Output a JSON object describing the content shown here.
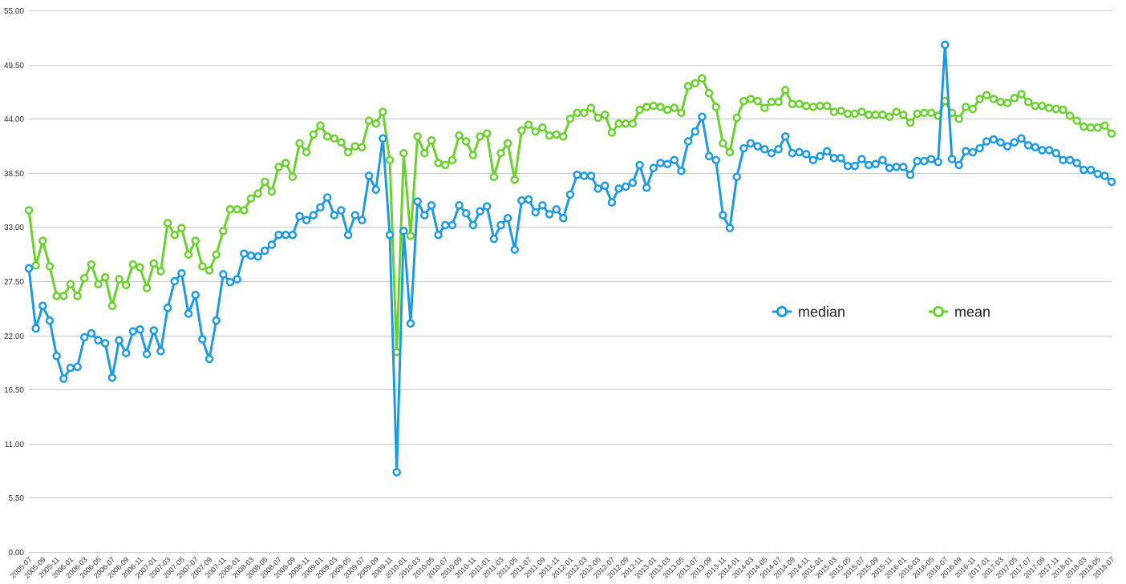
{
  "chart_data": {
    "type": "line",
    "title": "",
    "xlabel": "",
    "ylabel": "",
    "ylim": [
      0,
      55
    ],
    "y_ticks": [
      "0.00",
      "5.50",
      "11.00",
      "16.50",
      "22.00",
      "27.50",
      "33.00",
      "38.50",
      "44.00",
      "49.50",
      "55.00"
    ],
    "grid": "horizontal",
    "legend_position": "right-center",
    "x": [
      "2005-07",
      "2005-08",
      "2005-09",
      "2005-10",
      "2005-11",
      "2005-12",
      "2006-01",
      "2006-02",
      "2006-03",
      "2006-04",
      "2006-05",
      "2006-06",
      "2006-07",
      "2006-08",
      "2006-09",
      "2006-10",
      "2006-11",
      "2006-12",
      "2007-01",
      "2007-02",
      "2007-03",
      "2007-04",
      "2007-05",
      "2007-06",
      "2007-07",
      "2007-08",
      "2007-09",
      "2007-10",
      "2007-11",
      "2007-12",
      "2008-01",
      "2008-02",
      "2008-03",
      "2008-04",
      "2008-05",
      "2008-06",
      "2008-07",
      "2008-08",
      "2008-09",
      "2008-10",
      "2008-11",
      "2008-12",
      "2009-01",
      "2009-02",
      "2009-03",
      "2009-04",
      "2009-05",
      "2009-06",
      "2009-07",
      "2009-08",
      "2009-09",
      "2009-10",
      "2009-11",
      "2009-12",
      "2010-01",
      "2010-02",
      "2010-03",
      "2010-04",
      "2010-05",
      "2010-06",
      "2010-07",
      "2010-08",
      "2010-09",
      "2010-10",
      "2010-11",
      "2010-12",
      "2011-01",
      "2011-02",
      "2011-03",
      "2011-04",
      "2011-05",
      "2011-06",
      "2011-07",
      "2011-08",
      "2011-09",
      "2011-10",
      "2011-11",
      "2011-12",
      "2012-01",
      "2012-02",
      "2012-03",
      "2012-04",
      "2012-05",
      "2012-06",
      "2012-07",
      "2012-08",
      "2012-09",
      "2012-10",
      "2012-11",
      "2012-12",
      "2013-01",
      "2013-02",
      "2013-03",
      "2013-04",
      "2013-05",
      "2013-06",
      "2013-07",
      "2013-08",
      "2013-09",
      "2013-10",
      "2013-11",
      "2013-12",
      "2014-01",
      "2014-02",
      "2014-03",
      "2014-04",
      "2014-05",
      "2014-06",
      "2014-07",
      "2014-08",
      "2014-09",
      "2014-10",
      "2014-11",
      "2014-12",
      "2015-01",
      "2015-02",
      "2015-03",
      "2015-04",
      "2015-05",
      "2015-06",
      "2015-07",
      "2015-08",
      "2015-09",
      "2015-10",
      "2015-11",
      "2015-12",
      "2016-01",
      "2016-02",
      "2016-03",
      "2016-04",
      "2016-05",
      "2016-06",
      "2016-07",
      "2016-08",
      "2016-09",
      "2016-10",
      "2016-11",
      "2016-12",
      "2017-01",
      "2017-02",
      "2017-03",
      "2017-04",
      "2017-05",
      "2017-06",
      "2017-07",
      "2017-08",
      "2017-09",
      "2017-10",
      "2017-11",
      "2017-12",
      "2018-01",
      "2018-02",
      "2018-03",
      "2018-04",
      "2018-05",
      "2018-06",
      "2018-07"
    ],
    "series": [
      {
        "name": "median",
        "color": "#1e9be0",
        "values": [
          28.8,
          22.7,
          25.0,
          23.5,
          19.9,
          17.6,
          18.7,
          18.8,
          21.8,
          22.2,
          21.5,
          21.2,
          17.7,
          21.5,
          20.2,
          22.4,
          22.6,
          20.1,
          22.5,
          20.4,
          24.8,
          27.5,
          28.3,
          24.2,
          26.1,
          21.6,
          19.6,
          23.5,
          28.2,
          27.4,
          27.7,
          30.3,
          30.1,
          30.0,
          30.6,
          31.2,
          32.2,
          32.2,
          32.2,
          34.1,
          33.7,
          34.2,
          35.0,
          36.0,
          34.2,
          34.7,
          32.2,
          34.2,
          33.7,
          38.2,
          36.8,
          42.0,
          32.2,
          8.1,
          32.6,
          23.2,
          35.6,
          34.2,
          35.2,
          32.2,
          33.2,
          33.2,
          35.2,
          34.4,
          33.2,
          34.6,
          35.1,
          31.8,
          33.2,
          33.9,
          30.7,
          35.7,
          35.8,
          34.5,
          35.2,
          34.3,
          34.8,
          33.9,
          36.3,
          38.3,
          38.2,
          38.2,
          36.9,
          37.2,
          35.5,
          36.9,
          37.1,
          37.5,
          39.3,
          37.0,
          39.0,
          39.5,
          39.4,
          39.8,
          38.7,
          41.7,
          42.7,
          44.2,
          40.2,
          39.8,
          34.2,
          32.9,
          38.1,
          41.0,
          41.5,
          41.2,
          40.9,
          40.5,
          40.9,
          42.2,
          40.5,
          40.6,
          40.4,
          39.8,
          40.2,
          40.7,
          40.0,
          40.0,
          39.2,
          39.2,
          39.9,
          39.3,
          39.4,
          39.8,
          39.0,
          39.1,
          39.1,
          38.3,
          39.7,
          39.7,
          39.9,
          39.6,
          51.5,
          39.9,
          39.3,
          40.7,
          40.6,
          41.0,
          41.7,
          41.9,
          41.6,
          41.2,
          41.6,
          42.0,
          41.3,
          41.1,
          40.8,
          40.8,
          40.5,
          39.8,
          39.8,
          39.5,
          38.8,
          38.8,
          38.4,
          38.2,
          37.6
        ]
      },
      {
        "name": "mean",
        "color": "#6ad12e",
        "values": [
          34.7,
          29.1,
          31.6,
          29.0,
          26.0,
          26.0,
          27.2,
          26.0,
          27.8,
          29.2,
          27.2,
          27.9,
          25.0,
          27.7,
          27.1,
          29.2,
          28.9,
          26.8,
          29.3,
          28.5,
          33.4,
          32.2,
          32.9,
          30.2,
          31.6,
          29.0,
          28.6,
          30.2,
          32.6,
          34.8,
          34.8,
          34.7,
          35.9,
          36.4,
          37.6,
          36.6,
          39.1,
          39.5,
          38.1,
          41.5,
          40.6,
          42.4,
          43.3,
          42.2,
          42.0,
          41.6,
          40.6,
          41.2,
          41.1,
          43.8,
          43.5,
          44.7,
          39.8,
          20.3,
          40.5,
          32.1,
          42.2,
          40.5,
          41.8,
          39.5,
          39.3,
          39.8,
          42.3,
          41.7,
          40.3,
          42.2,
          42.5,
          38.1,
          40.5,
          41.5,
          37.8,
          42.8,
          43.4,
          42.7,
          43.1,
          42.3,
          42.4,
          42.2,
          44.0,
          44.6,
          44.6,
          45.1,
          44.1,
          44.4,
          42.6,
          43.5,
          43.5,
          43.5,
          44.9,
          45.2,
          45.3,
          45.2,
          44.9,
          45.1,
          44.6,
          47.3,
          47.6,
          48.1,
          46.6,
          45.2,
          41.5,
          40.6,
          44.1,
          45.8,
          46.0,
          45.8,
          45.1,
          45.7,
          45.7,
          46.9,
          45.5,
          45.5,
          45.3,
          45.2,
          45.3,
          45.3,
          44.7,
          44.8,
          44.5,
          44.5,
          44.7,
          44.4,
          44.4,
          44.4,
          44.2,
          44.7,
          44.4,
          43.6,
          44.5,
          44.6,
          44.6,
          44.3,
          45.8,
          44.6,
          44.0,
          45.2,
          45.0,
          46.0,
          46.4,
          46.0,
          45.7,
          45.6,
          46.1,
          46.5,
          45.7,
          45.3,
          45.3,
          45.1,
          45.0,
          44.9,
          44.3,
          43.8,
          43.2,
          43.1,
          43.1,
          43.3,
          42.5
        ]
      }
    ]
  }
}
